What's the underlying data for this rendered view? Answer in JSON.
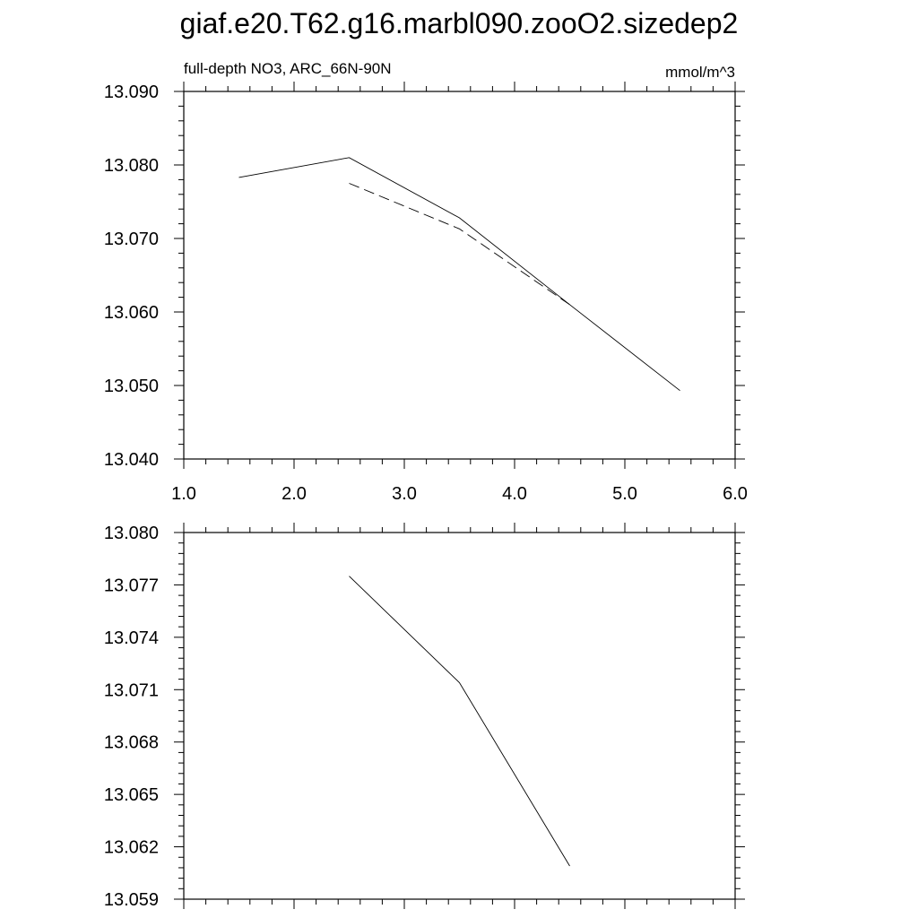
{
  "page": {
    "title": "giaf.e20.T62.g16.marbl090.zooO2.sizedep2"
  },
  "chart_data": [
    {
      "type": "line",
      "subtitle_left": "full-depth NO3, ARC_66N-90N",
      "subtitle_right": "mmol/m^3",
      "xlim": [
        1.0,
        6.0
      ],
      "ylim": [
        13.04,
        13.09
      ],
      "x_ticks": [
        1.0,
        2.0,
        3.0,
        4.0,
        5.0,
        6.0
      ],
      "x_tick_labels": [
        "1.0",
        "2.0",
        "3.0",
        "4.0",
        "5.0",
        "6.0"
      ],
      "y_ticks": [
        13.04,
        13.05,
        13.06,
        13.07,
        13.08,
        13.09
      ],
      "y_tick_labels": [
        "13.040",
        "13.050",
        "13.060",
        "13.070",
        "13.080",
        "13.090"
      ],
      "grid": false,
      "series": [
        {
          "style": "solid",
          "color": "#000000",
          "x": [
            1.5,
            2.5,
            3.5,
            4.5,
            5.5
          ],
          "y": [
            13.0783,
            13.081,
            13.0728,
            13.061,
            13.0493
          ]
        },
        {
          "style": "dashed",
          "color": "#000000",
          "x": [
            2.5,
            3.5,
            4.5
          ],
          "y": [
            13.0775,
            13.0713,
            13.061
          ]
        }
      ]
    },
    {
      "type": "line",
      "xlim": [
        1.0,
        6.0
      ],
      "ylim": [
        13.059,
        13.08
      ],
      "x_ticks": [
        1.0,
        2.0,
        3.0,
        4.0,
        5.0,
        6.0
      ],
      "x_tick_labels": [],
      "y_ticks": [
        13.059,
        13.062,
        13.065,
        13.068,
        13.071,
        13.074,
        13.077,
        13.08
      ],
      "y_tick_labels": [
        "13.059",
        "13.062",
        "13.065",
        "13.068",
        "13.071",
        "13.074",
        "13.077",
        "13.080"
      ],
      "grid": false,
      "series": [
        {
          "style": "solid",
          "color": "#000000",
          "x": [
            2.5,
            3.5,
            4.5
          ],
          "y": [
            13.0775,
            13.0714,
            13.0609
          ]
        }
      ]
    }
  ]
}
